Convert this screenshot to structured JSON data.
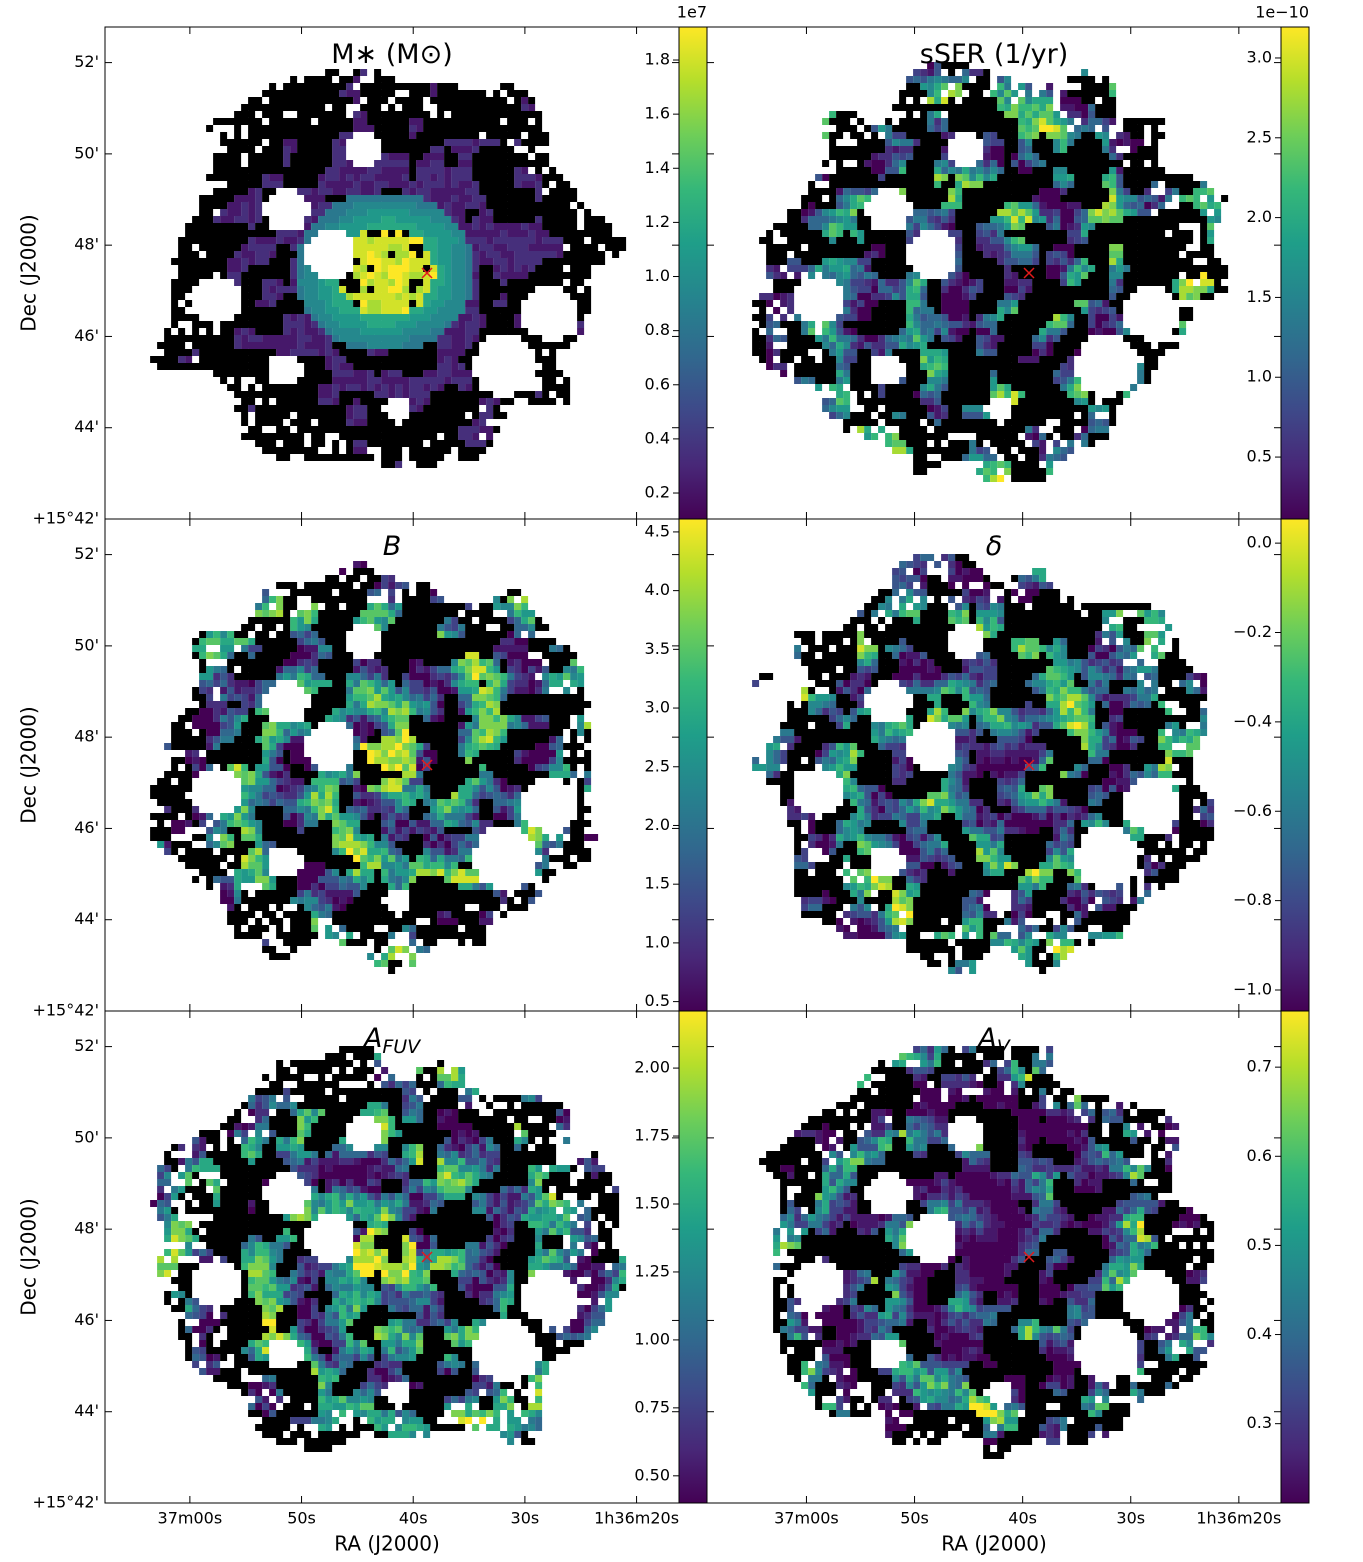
{
  "chart_data": [
    {
      "type": "heatmap",
      "title": "M∗ (M⊙)",
      "ylabel": "Dec (J2000)",
      "colorbar_offset": "1e7",
      "xlim": [
        67.6,
        16.2
      ],
      "ylim": [
        42,
        52.78
      ],
      "yticks": [
        {
          "value": 42,
          "label": "+15°42'"
        },
        {
          "value": 44,
          "label": "44'"
        },
        {
          "value": 46,
          "label": "46'"
        },
        {
          "value": 48,
          "label": "48'"
        },
        {
          "value": 50,
          "label": "50'"
        },
        {
          "value": 52,
          "label": "52'"
        }
      ],
      "clim": [
        0.104,
        1.922
      ],
      "cticks": [
        0.2,
        0.4,
        0.6,
        0.8,
        {
          "value": 1,
          "label": "1.0"
        },
        1.2,
        1.4,
        1.6,
        1.8
      ]
    },
    {
      "type": "heatmap",
      "title": "sSFR (1/yr)",
      "colorbar_offset": "1e−10",
      "xlim": [
        69.2,
        16.1
      ],
      "ylim": [
        42,
        52.78
      ],
      "clim": [
        0.112,
        3.194
      ],
      "cticks": [
        0.5,
        {
          "value": 1,
          "label": "1.0"
        },
        1.5,
        {
          "value": 2,
          "label": "2.0"
        },
        2.5,
        {
          "value": 3,
          "label": "3.0"
        }
      ]
    },
    {
      "type": "heatmap",
      "title": "B",
      "ylabel": "Dec (J2000)",
      "xlim": [
        67.6,
        16.2
      ],
      "ylim": [
        42,
        52.78
      ],
      "yticks": [
        {
          "value": 42,
          "label": "+15°42'"
        },
        {
          "value": 44,
          "label": "44'"
        },
        {
          "value": 46,
          "label": "46'"
        },
        {
          "value": 48,
          "label": "48'"
        },
        {
          "value": 50,
          "label": "50'"
        },
        {
          "value": 52,
          "label": "52'"
        }
      ],
      "clim": [
        0.42,
        4.61
      ],
      "cticks": [
        0.5,
        {
          "value": 1,
          "label": "1.0"
        },
        1.5,
        {
          "value": 2,
          "label": "2.0"
        },
        2.5,
        {
          "value": 3,
          "label": "3.0"
        },
        3.5,
        {
          "value": 4,
          "label": "4.0"
        },
        4.5
      ]
    },
    {
      "type": "heatmap",
      "title": "δ",
      "xlim": [
        69.2,
        16.1
      ],
      "ylim": [
        42,
        52.78
      ],
      "clim": [
        -1.047,
        0.054
      ],
      "cticks": [
        {
          "value": 0,
          "label": "0.0"
        },
        {
          "value": -0.2,
          "label": "−0.2"
        },
        {
          "value": -0.4,
          "label": "−0.4"
        },
        {
          "value": -0.6,
          "label": "−0.6"
        },
        {
          "value": -0.8,
          "label": "−0.8"
        },
        {
          "value": -1,
          "label": "−1.0"
        }
      ]
    },
    {
      "type": "heatmap",
      "title": "A",
      "title_subscript": "FUV",
      "ylabel": "Dec (J2000)",
      "xlabel": "RA (J2000)",
      "xlim": [
        67.6,
        16.2
      ],
      "ylim": [
        42,
        52.78
      ],
      "xticks": [
        {
          "value": 60,
          "label": "37m00s"
        },
        {
          "value": 50,
          "label": "50s"
        },
        {
          "value": 40,
          "label": "40s"
        },
        {
          "value": 30,
          "label": "30s"
        },
        {
          "value": 20,
          "label": "1h36m20s"
        }
      ],
      "yticks": [
        {
          "value": 42,
          "label": "+15°42'"
        },
        {
          "value": 44,
          "label": "44'"
        },
        {
          "value": 46,
          "label": "46'"
        },
        {
          "value": 48,
          "label": "48'"
        },
        {
          "value": 50,
          "label": "50'"
        },
        {
          "value": 52,
          "label": "52'"
        }
      ],
      "clim": [
        0.4,
        2.21
      ],
      "cticks": [
        {
          "value": 0.5,
          "label": "0.50"
        },
        0.75,
        {
          "value": 1,
          "label": "1.00"
        },
        1.25,
        {
          "value": 1.5,
          "label": "1.50"
        },
        1.75,
        {
          "value": 2,
          "label": "2.00"
        }
      ]
    },
    {
      "type": "heatmap",
      "title": "A",
      "title_subscript": "V",
      "xlabel": "RA (J2000)",
      "xlim": [
        69.2,
        16.1
      ],
      "ylim": [
        42,
        52.78
      ],
      "xticks": [
        {
          "value": 60,
          "label": "37m00s"
        },
        {
          "value": 50,
          "label": "50s"
        },
        {
          "value": 40,
          "label": "40s"
        },
        {
          "value": 30,
          "label": "30s"
        },
        {
          "value": 20,
          "label": "1h36m20s"
        }
      ],
      "clim": [
        0.211,
        0.763
      ],
      "cticks": [
        0.3,
        0.4,
        0.5,
        0.6,
        0.7
      ]
    }
  ]
}
